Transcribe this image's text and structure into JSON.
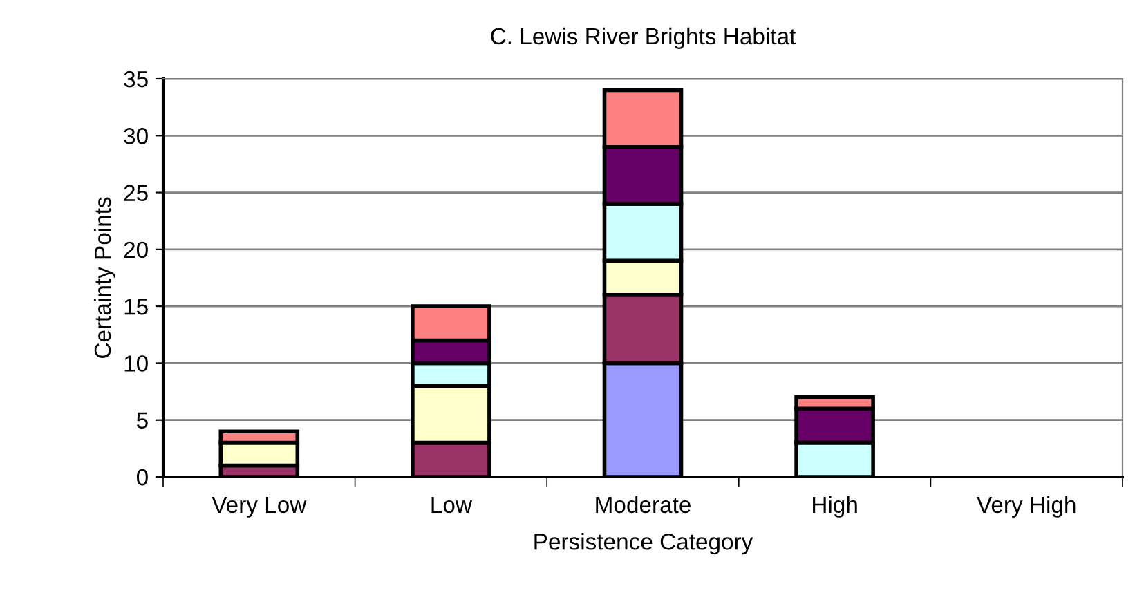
{
  "chart_data": {
    "type": "bar",
    "title": "C. Lewis River Brights Habitat",
    "xlabel": "Persistence Category",
    "ylabel": "Certainty Points",
    "categories": [
      "Very Low",
      "Low",
      "Moderate",
      "High",
      "Very High"
    ],
    "stacked": true,
    "series": [
      {
        "color": "#9999ff",
        "values": [
          0,
          0,
          10,
          0,
          0
        ]
      },
      {
        "color": "#993366",
        "values": [
          1,
          3,
          6,
          0,
          0
        ]
      },
      {
        "color": "#ffffcc",
        "values": [
          2,
          5,
          3,
          0,
          0
        ]
      },
      {
        "color": "#ccffff",
        "values": [
          0,
          2,
          5,
          3,
          0
        ]
      },
      {
        "color": "#660066",
        "values": [
          0,
          2,
          5,
          3,
          0
        ]
      },
      {
        "color": "#ff8080",
        "values": [
          1,
          3,
          5,
          1,
          0
        ]
      }
    ],
    "ylim": [
      0,
      35
    ],
    "yticks": [
      0,
      5,
      10,
      15,
      20,
      25,
      30,
      35
    ],
    "grid": "y",
    "legend": false
  }
}
